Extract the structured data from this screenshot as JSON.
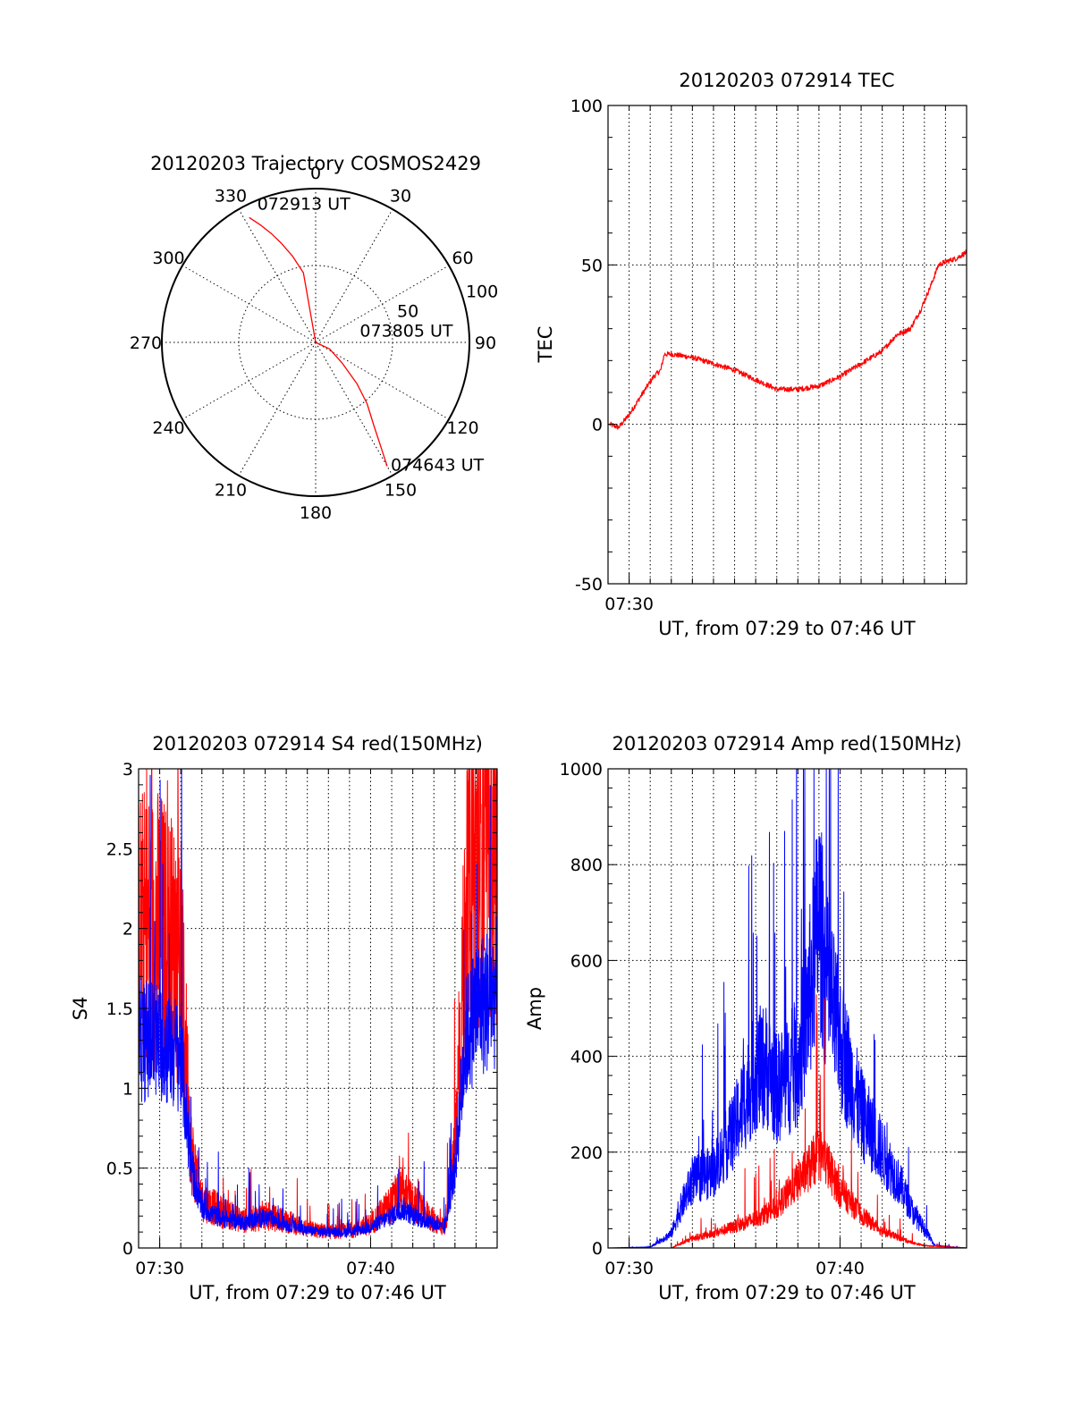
{
  "colors": {
    "red": "#ff0000",
    "blue": "#0000ff",
    "axis": "#000000",
    "background": "#ffffff"
  },
  "chart_data": [
    {
      "id": "trajectory",
      "type": "scatter",
      "title": "20120203 Trajectory COSMOS2429",
      "projection": "polar",
      "azimuth_labels": [
        "0",
        "30",
        "60",
        "90",
        "120",
        "150",
        "180",
        "210",
        "240",
        "270",
        "300",
        "330"
      ],
      "radial_labels": [
        "50",
        "100"
      ],
      "rlim": [
        0,
        100
      ],
      "grid": true,
      "series": [
        {
          "color": "#ff0000",
          "azimuth_deg": [
            332,
            335,
            338,
            341,
            345,
            350,
            0,
            115,
            128,
            135,
            140,
            145,
            148,
            150
          ],
          "radius": [
            92,
            84,
            76,
            68,
            58,
            46,
            0,
            10,
            22,
            38,
            52,
            66,
            80,
            93
          ]
        }
      ],
      "annotations": [
        {
          "text": "072913 UT",
          "azimuth_deg": 338,
          "radius": 92
        },
        {
          "text": "073805 UT",
          "azimuth_deg": 80,
          "radius": 15
        },
        {
          "text": "074643 UT",
          "azimuth_deg": 150,
          "radius": 93
        }
      ]
    },
    {
      "id": "tec",
      "type": "line",
      "title": "20120203 072914 TEC",
      "xlabel": "UT, from 07:29 to 07:46 UT",
      "ylabel": "TEC",
      "xlim": [
        "07:29",
        "07:46"
      ],
      "ylim": [
        -50,
        100
      ],
      "yticks": [
        "-50",
        "0",
        "50",
        "100"
      ],
      "xticks": [
        {
          "time": "07:30",
          "label": "07:30"
        }
      ],
      "grid": true,
      "series": [
        {
          "color": "#ff0000",
          "noise": 0.8,
          "x": [
            "07:29:05",
            "07:29:30",
            "07:30:00",
            "07:30:40",
            "07:31:10",
            "07:31:30",
            "07:31:40",
            "07:32:00",
            "07:33:00",
            "07:34:00",
            "07:35:00",
            "07:36:00",
            "07:37:00",
            "07:38:00",
            "07:39:00",
            "07:40:00",
            "07:41:00",
            "07:42:00",
            "07:42:40",
            "07:43:20",
            "07:43:50",
            "07:44:20",
            "07:44:40",
            "07:45:00",
            "07:45:30",
            "07:46:00"
          ],
          "y": [
            0,
            -1,
            3,
            10,
            15,
            17,
            22,
            22,
            21,
            19,
            17,
            14,
            11,
            11,
            12,
            15,
            19,
            23,
            28,
            30,
            36,
            44,
            50,
            51,
            52,
            54
          ]
        }
      ]
    },
    {
      "id": "s4",
      "type": "line",
      "title": "20120203 072914 S4 red(150MHz)",
      "xlabel": "UT, from 07:29 to 07:46 UT",
      "ylabel": "S4",
      "xlim": [
        "07:29",
        "07:46"
      ],
      "ylim": [
        0,
        3
      ],
      "yticks": [
        "0",
        "0.5",
        "1",
        "1.5",
        "2",
        "2.5",
        "3"
      ],
      "xticks": [
        {
          "time": "07:30",
          "label": "07:30"
        },
        {
          "time": "07:40",
          "label": "07:40"
        }
      ],
      "grid": true,
      "series": [
        {
          "color": "#ff0000",
          "noise": 0.45,
          "x": [
            "07:29:00",
            "07:30:00",
            "07:31:00",
            "07:31:30",
            "07:32:00",
            "07:33:00",
            "07:34:00",
            "07:35:00",
            "07:36:00",
            "07:37:00",
            "07:38:00",
            "07:39:00",
            "07:40:00",
            "07:41:00",
            "07:41:30",
            "07:42:00",
            "07:43:00",
            "07:43:30",
            "07:44:00",
            "07:44:30",
            "07:45:00",
            "07:46:00"
          ],
          "y": [
            2.0,
            2.0,
            1.8,
            0.6,
            0.3,
            0.22,
            0.17,
            0.2,
            0.17,
            0.12,
            0.1,
            0.11,
            0.15,
            0.28,
            0.35,
            0.28,
            0.17,
            0.13,
            0.6,
            2.0,
            2.5,
            2.5
          ]
        },
        {
          "color": "#0000ff",
          "noise": 0.3,
          "x": [
            "07:29:00",
            "07:30:00",
            "07:31:00",
            "07:31:30",
            "07:32:00",
            "07:33:00",
            "07:34:00",
            "07:35:00",
            "07:36:00",
            "07:37:00",
            "07:38:00",
            "07:39:00",
            "07:40:00",
            "07:41:00",
            "07:41:30",
            "07:42:00",
            "07:43:00",
            "07:43:30",
            "07:44:00",
            "07:44:30",
            "07:45:00",
            "07:46:00"
          ],
          "y": [
            1.3,
            1.3,
            1.2,
            0.5,
            0.25,
            0.18,
            0.16,
            0.19,
            0.15,
            0.11,
            0.1,
            0.1,
            0.13,
            0.2,
            0.25,
            0.2,
            0.15,
            0.12,
            0.5,
            1.3,
            1.5,
            1.6
          ]
        }
      ]
    },
    {
      "id": "amp",
      "type": "line",
      "title": "20120203 072914 Amp red(150MHz)",
      "xlabel": "UT, from 07:29 to 07:46 UT",
      "ylabel": "Amp",
      "xlim": [
        "07:29",
        "07:46"
      ],
      "ylim": [
        0,
        1000
      ],
      "yticks": [
        "0",
        "200",
        "400",
        "600",
        "800",
        "1000"
      ],
      "xticks": [
        {
          "time": "07:30",
          "label": "07:30"
        },
        {
          "time": "07:40",
          "label": "07:40"
        }
      ],
      "grid": true,
      "series": [
        {
          "color": "#0000ff",
          "noise": 0.35,
          "x": [
            "07:29:00",
            "07:31:00",
            "07:32:00",
            "07:32:30",
            "07:33:00",
            "07:34:00",
            "07:35:00",
            "07:36:00",
            "07:36:30",
            "07:37:00",
            "07:38:00",
            "07:38:40",
            "07:39:00",
            "07:39:20",
            "07:40:00",
            "07:41:00",
            "07:42:00",
            "07:43:00",
            "07:43:30",
            "07:44:00",
            "07:44:30",
            "07:46:00"
          ],
          "y": [
            0,
            2,
            30,
            90,
            140,
            160,
            250,
            370,
            380,
            330,
            380,
            560,
            700,
            560,
            430,
            280,
            200,
            120,
            70,
            40,
            5,
            0
          ]
        },
        {
          "color": "#ff0000",
          "noise": 0.3,
          "x": [
            "07:29:00",
            "07:32:00",
            "07:32:30",
            "07:33:00",
            "07:34:00",
            "07:35:00",
            "07:36:00",
            "07:37:00",
            "07:38:00",
            "07:38:40",
            "07:39:00",
            "07:39:20",
            "07:40:00",
            "07:41:00",
            "07:42:00",
            "07:43:00",
            "07:43:30",
            "07:44:00",
            "07:46:00"
          ],
          "y": [
            0,
            0,
            10,
            20,
            30,
            45,
            60,
            85,
            140,
            175,
            200,
            180,
            120,
            70,
            35,
            18,
            10,
            5,
            0
          ]
        }
      ]
    }
  ]
}
